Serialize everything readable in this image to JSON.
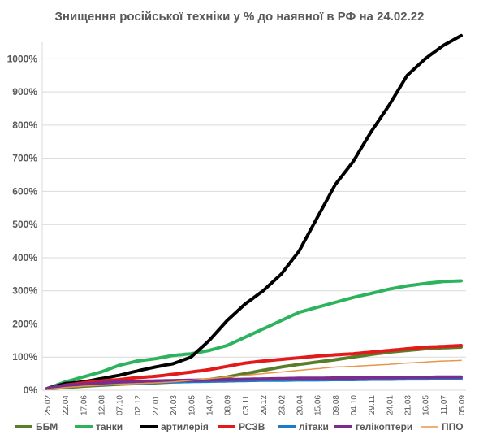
{
  "chart_data": {
    "type": "line",
    "title": "Знищення російської техніки у % до наявної в РФ на 24.02.22",
    "xlabel": "",
    "ylabel": "",
    "ylim": [
      0,
      1050
    ],
    "y_ticks": [
      0,
      100,
      200,
      300,
      400,
      500,
      600,
      700,
      800,
      900,
      1000
    ],
    "y_tick_labels": [
      "0%",
      "100%",
      "200%",
      "300%",
      "400%",
      "500%",
      "600%",
      "700%",
      "800%",
      "900%",
      "1000%"
    ],
    "x_tick_labels": [
      "25.02",
      "22.04",
      "17.06",
      "12.08",
      "07.10",
      "02.12",
      "27.01",
      "24.03",
      "19.05",
      "14.07",
      "08.09",
      "03.11",
      "29.12",
      "23.02",
      "20.04",
      "15.06",
      "09.08",
      "04.10",
      "29.11",
      "24.01",
      "21.03",
      "16.05",
      "11.07",
      "05.09"
    ],
    "grid": true,
    "legend_position": "bottom",
    "series": [
      {
        "name": "ББМ",
        "color": "#5a7d2a",
        "values": [
          5,
          8,
          12,
          15,
          18,
          20,
          22,
          25,
          28,
          32,
          40,
          50,
          60,
          70,
          78,
          85,
          92,
          100,
          108,
          115,
          120,
          125,
          128,
          130
        ]
      },
      {
        "name": "танки",
        "color": "#2db35d",
        "values": [
          5,
          25,
          40,
          55,
          75,
          88,
          95,
          105,
          110,
          120,
          135,
          160,
          185,
          210,
          235,
          250,
          265,
          280,
          292,
          305,
          315,
          322,
          328,
          330
        ]
      },
      {
        "name": "артилерія",
        "color": "#000000",
        "values": [
          5,
          20,
          25,
          35,
          45,
          58,
          70,
          80,
          100,
          150,
          210,
          260,
          300,
          350,
          420,
          520,
          620,
          690,
          780,
          860,
          950,
          1000,
          1040,
          1070
        ]
      },
      {
        "name": "РСЗВ",
        "color": "#e31a1c",
        "values": [
          5,
          15,
          22,
          28,
          32,
          38,
          42,
          48,
          55,
          62,
          72,
          82,
          88,
          93,
          98,
          103,
          107,
          110,
          115,
          120,
          125,
          130,
          132,
          135
        ]
      },
      {
        "name": "літаки",
        "color": "#1f7bc4",
        "values": [
          5,
          12,
          15,
          18,
          20,
          22,
          24,
          25,
          26,
          27,
          28,
          29,
          30,
          30,
          31,
          31,
          32,
          32,
          33,
          33,
          34,
          34,
          35,
          35
        ]
      },
      {
        "name": "гелікоптери",
        "color": "#7b2d8e",
        "values": [
          5,
          15,
          18,
          22,
          25,
          27,
          28,
          29,
          30,
          31,
          32,
          33,
          34,
          35,
          36,
          36,
          37,
          37,
          38,
          38,
          39,
          39,
          40,
          40
        ]
      },
      {
        "name": "ППО",
        "color": "#e8964a",
        "values": [
          2,
          8,
          12,
          15,
          18,
          20,
          22,
          25,
          30,
          35,
          40,
          45,
          50,
          55,
          60,
          65,
          70,
          72,
          75,
          78,
          82,
          85,
          88,
          90
        ]
      }
    ]
  }
}
